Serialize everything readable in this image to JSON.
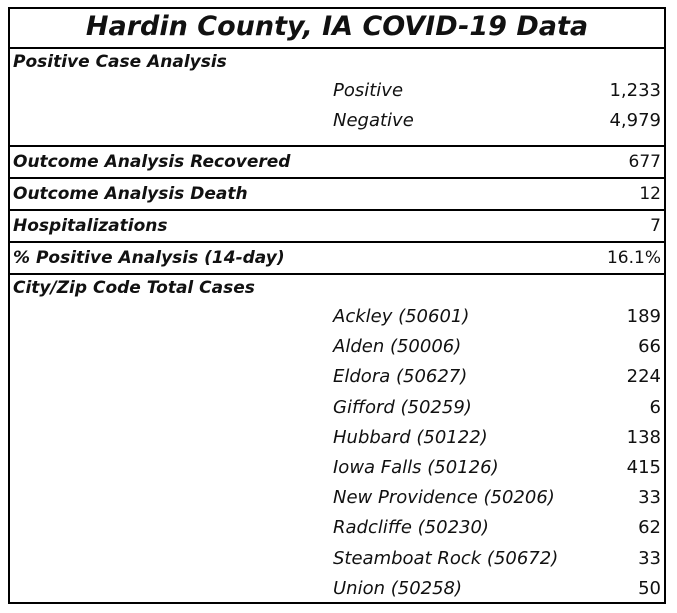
{
  "title": "Hardin County, IA COVID-19 Data",
  "positive_case_analysis": {
    "label": "Positive Case Analysis",
    "rows": [
      {
        "label": "Positive",
        "value": "1,233"
      },
      {
        "label": "Negative",
        "value": "4,979"
      }
    ]
  },
  "recovered": {
    "label": "Outcome Analysis Recovered",
    "value": "677"
  },
  "death": {
    "label": "Outcome Analysis Death",
    "value": "12"
  },
  "hospitalizations": {
    "label": "Hospitalizations",
    "value": "7"
  },
  "positivity": {
    "label": "% Positive Analysis (14-day)",
    "value": "16.1%"
  },
  "city_zip": {
    "label": "City/Zip Code Total Cases",
    "rows": [
      {
        "label": "Ackley (50601)",
        "value": "189"
      },
      {
        "label": "Alden (50006)",
        "value": "66"
      },
      {
        "label": "Eldora (50627)",
        "value": "224"
      },
      {
        "label": "Gifford (50259)",
        "value": "6"
      },
      {
        "label": "Hubbard (50122)",
        "value": "138"
      },
      {
        "label": "Iowa Falls (50126)",
        "value": "415"
      },
      {
        "label": "New Providence (50206)",
        "value": "33"
      },
      {
        "label": "Radcliffe (50230)",
        "value": "62"
      },
      {
        "label": "Steamboat Rock (50672)",
        "value": "33"
      },
      {
        "label": "Union (50258)",
        "value": "50"
      }
    ]
  }
}
